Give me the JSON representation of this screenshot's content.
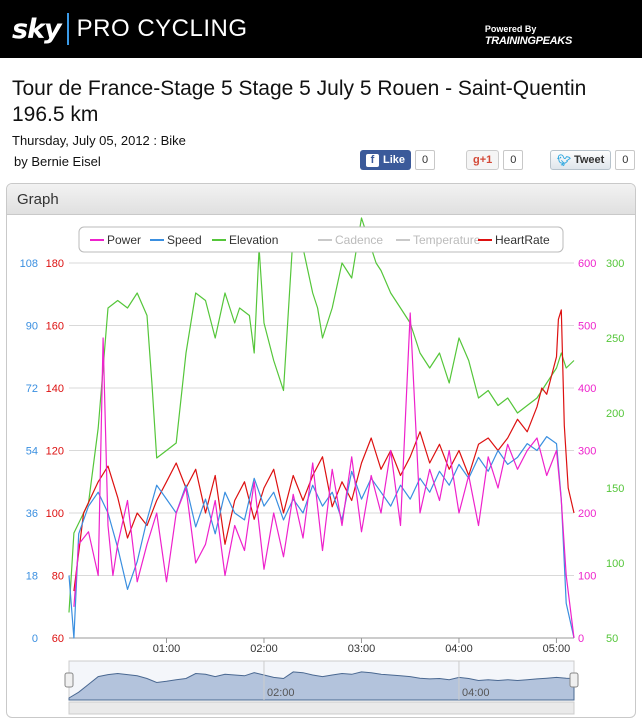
{
  "brand": {
    "sky": "sky",
    "pro": "PRO CYCLING",
    "powered_by": "Powered By",
    "partner": "TRAININGPEAKS"
  },
  "page": {
    "title": "Tour de France-Stage 5 Stage 5 July 5 Rouen - Saint-Quentin 196.5 km",
    "date_line": "Thursday, July 05, 2012 : Bike",
    "author": "by Bernie Eisel"
  },
  "share": {
    "facebook": {
      "label": "Like",
      "count": "0"
    },
    "google": {
      "label": "+1",
      "count": "0"
    },
    "twitter": {
      "label": "Tweet",
      "count": "0"
    }
  },
  "panel": {
    "title": "Graph"
  },
  "colors": {
    "power": "#ee22cc",
    "speed": "#3a8fe0",
    "elevation": "#55c63a",
    "heartrate": "#dd1111",
    "disabled": "#c9c9c9"
  },
  "chart_data": {
    "type": "line",
    "legend": [
      {
        "name": "Power",
        "enabled": true
      },
      {
        "name": "Speed",
        "enabled": true
      },
      {
        "name": "Elevation",
        "enabled": true
      },
      {
        "name": "Cadence",
        "enabled": false
      },
      {
        "name": "Temperature",
        "enabled": false
      },
      {
        "name": "HeartRate",
        "enabled": true
      }
    ],
    "legend_placement": "top",
    "grid": true,
    "x_ticks": [
      "01:00",
      "02:00",
      "03:00",
      "04:00",
      "05:00"
    ],
    "x_range_hours": [
      0,
      5.18
    ],
    "axes": {
      "speed": {
        "ticks": [
          "0",
          "18",
          "36",
          "54",
          "72",
          "90",
          "108"
        ],
        "range": [
          0,
          108
        ]
      },
      "heartrate": {
        "ticks": [
          "60",
          "80",
          "100",
          "120",
          "140",
          "160",
          "180"
        ],
        "range": [
          60,
          180
        ]
      },
      "power": {
        "ticks": [
          "0",
          "100",
          "200",
          "300",
          "400",
          "500",
          "600"
        ],
        "range": [
          0,
          600
        ]
      },
      "elevation": {
        "ticks": [
          "50",
          "100",
          "150",
          "200",
          "250",
          "300"
        ],
        "range": [
          50,
          300
        ]
      }
    },
    "series": [
      {
        "name": "Elevation",
        "axis": "elevation",
        "points": [
          [
            0,
            67
          ],
          [
            0.05,
            120
          ],
          [
            0.2,
            140
          ],
          [
            0.3,
            190
          ],
          [
            0.4,
            270
          ],
          [
            0.5,
            275
          ],
          [
            0.6,
            270
          ],
          [
            0.7,
            280
          ],
          [
            0.8,
            265
          ],
          [
            0.85,
            220
          ],
          [
            0.9,
            170
          ],
          [
            1.0,
            175
          ],
          [
            1.1,
            180
          ],
          [
            1.2,
            240
          ],
          [
            1.3,
            280
          ],
          [
            1.4,
            275
          ],
          [
            1.5,
            250
          ],
          [
            1.6,
            280
          ],
          [
            1.7,
            260
          ],
          [
            1.75,
            270
          ],
          [
            1.85,
            265
          ],
          [
            1.9,
            240
          ],
          [
            1.95,
            310
          ],
          [
            2.0,
            260
          ],
          [
            2.1,
            235
          ],
          [
            2.2,
            215
          ],
          [
            2.3,
            320
          ],
          [
            2.4,
            310
          ],
          [
            2.5,
            280
          ],
          [
            2.55,
            270
          ],
          [
            2.6,
            250
          ],
          [
            2.7,
            270
          ],
          [
            2.8,
            300
          ],
          [
            2.9,
            290
          ],
          [
            3.0,
            330
          ],
          [
            3.1,
            310
          ],
          [
            3.15,
            300
          ],
          [
            3.2,
            295
          ],
          [
            3.3,
            280
          ],
          [
            3.4,
            270
          ],
          [
            3.5,
            260
          ],
          [
            3.6,
            240
          ],
          [
            3.7,
            230
          ],
          [
            3.8,
            240
          ],
          [
            3.9,
            220
          ],
          [
            4.0,
            250
          ],
          [
            4.1,
            235
          ],
          [
            4.2,
            210
          ],
          [
            4.3,
            215
          ],
          [
            4.4,
            205
          ],
          [
            4.5,
            210
          ],
          [
            4.6,
            200
          ],
          [
            4.7,
            205
          ],
          [
            4.8,
            210
          ],
          [
            4.9,
            220
          ],
          [
            5.0,
            230
          ],
          [
            5.05,
            240
          ],
          [
            5.1,
            230
          ],
          [
            5.18,
            235
          ]
        ]
      },
      {
        "name": "HeartRate",
        "axis": "heartrate",
        "points": [
          [
            0.05,
            75
          ],
          [
            0.15,
            100
          ],
          [
            0.3,
            110
          ],
          [
            0.4,
            115
          ],
          [
            0.5,
            105
          ],
          [
            0.6,
            92
          ],
          [
            0.7,
            100
          ],
          [
            0.8,
            96
          ],
          [
            0.9,
            104
          ],
          [
            1.0,
            110
          ],
          [
            1.1,
            116
          ],
          [
            1.2,
            108
          ],
          [
            1.3,
            114
          ],
          [
            1.4,
            100
          ],
          [
            1.5,
            112
          ],
          [
            1.6,
            90
          ],
          [
            1.7,
            104
          ],
          [
            1.8,
            110
          ],
          [
            1.9,
            98
          ],
          [
            2.0,
            108
          ],
          [
            2.1,
            114
          ],
          [
            2.2,
            100
          ],
          [
            2.3,
            112
          ],
          [
            2.4,
            104
          ],
          [
            2.5,
            112
          ],
          [
            2.6,
            118
          ],
          [
            2.7,
            102
          ],
          [
            2.8,
            110
          ],
          [
            2.9,
            104
          ],
          [
            3.0,
            116
          ],
          [
            3.1,
            124
          ],
          [
            3.2,
            114
          ],
          [
            3.3,
            120
          ],
          [
            3.4,
            112
          ],
          [
            3.5,
            118
          ],
          [
            3.6,
            126
          ],
          [
            3.7,
            116
          ],
          [
            3.8,
            122
          ],
          [
            3.9,
            114
          ],
          [
            4.0,
            120
          ],
          [
            4.1,
            112
          ],
          [
            4.2,
            122
          ],
          [
            4.3,
            124
          ],
          [
            4.4,
            120
          ],
          [
            4.5,
            124
          ],
          [
            4.6,
            130
          ],
          [
            4.7,
            126
          ],
          [
            4.8,
            134
          ],
          [
            4.85,
            140
          ],
          [
            4.9,
            138
          ],
          [
            4.95,
            144
          ],
          [
            5.0,
            150
          ],
          [
            5.02,
            162
          ],
          [
            5.05,
            165
          ],
          [
            5.08,
            128
          ],
          [
            5.12,
            108
          ],
          [
            5.18,
            100
          ]
        ]
      },
      {
        "name": "Speed",
        "axis": "speed",
        "points": [
          [
            0,
            18
          ],
          [
            0.05,
            0
          ],
          [
            0.1,
            30
          ],
          [
            0.2,
            38
          ],
          [
            0.3,
            42
          ],
          [
            0.4,
            36
          ],
          [
            0.5,
            26
          ],
          [
            0.6,
            14
          ],
          [
            0.7,
            22
          ],
          [
            0.8,
            34
          ],
          [
            0.9,
            44
          ],
          [
            1.0,
            40
          ],
          [
            1.1,
            36
          ],
          [
            1.2,
            44
          ],
          [
            1.3,
            32
          ],
          [
            1.4,
            40
          ],
          [
            1.5,
            30
          ],
          [
            1.6,
            42
          ],
          [
            1.7,
            36
          ],
          [
            1.8,
            34
          ],
          [
            1.9,
            46
          ],
          [
            2.0,
            38
          ],
          [
            2.1,
            42
          ],
          [
            2.2,
            34
          ],
          [
            2.3,
            40
          ],
          [
            2.4,
            36
          ],
          [
            2.5,
            44
          ],
          [
            2.6,
            38
          ],
          [
            2.7,
            42
          ],
          [
            2.8,
            34
          ],
          [
            2.9,
            48
          ],
          [
            3.0,
            40
          ],
          [
            3.1,
            46
          ],
          [
            3.2,
            42
          ],
          [
            3.3,
            38
          ],
          [
            3.4,
            44
          ],
          [
            3.5,
            40
          ],
          [
            3.6,
            46
          ],
          [
            3.7,
            42
          ],
          [
            3.8,
            48
          ],
          [
            3.9,
            44
          ],
          [
            4.0,
            50
          ],
          [
            4.1,
            46
          ],
          [
            4.2,
            52
          ],
          [
            4.3,
            48
          ],
          [
            4.4,
            54
          ],
          [
            4.5,
            50
          ],
          [
            4.6,
            52
          ],
          [
            4.7,
            56
          ],
          [
            4.8,
            54
          ],
          [
            4.9,
            58
          ],
          [
            5.0,
            56
          ],
          [
            5.05,
            40
          ],
          [
            5.1,
            10
          ],
          [
            5.18,
            0
          ]
        ]
      },
      {
        "name": "Power",
        "axis": "power",
        "points": [
          [
            0.05,
            50
          ],
          [
            0.1,
            150
          ],
          [
            0.2,
            170
          ],
          [
            0.3,
            100
          ],
          [
            0.35,
            480
          ],
          [
            0.4,
            180
          ],
          [
            0.45,
            100
          ],
          [
            0.5,
            150
          ],
          [
            0.6,
            220
          ],
          [
            0.7,
            90
          ],
          [
            0.8,
            150
          ],
          [
            0.9,
            200
          ],
          [
            1.0,
            90
          ],
          [
            1.1,
            200
          ],
          [
            1.2,
            240
          ],
          [
            1.3,
            120
          ],
          [
            1.4,
            150
          ],
          [
            1.5,
            220
          ],
          [
            1.6,
            100
          ],
          [
            1.7,
            180
          ],
          [
            1.8,
            140
          ],
          [
            1.9,
            250
          ],
          [
            2.0,
            110
          ],
          [
            2.1,
            200
          ],
          [
            2.2,
            130
          ],
          [
            2.3,
            230
          ],
          [
            2.4,
            160
          ],
          [
            2.5,
            280
          ],
          [
            2.6,
            140
          ],
          [
            2.7,
            270
          ],
          [
            2.8,
            180
          ],
          [
            2.9,
            290
          ],
          [
            3.0,
            170
          ],
          [
            3.1,
            260
          ],
          [
            3.2,
            200
          ],
          [
            3.3,
            300
          ],
          [
            3.4,
            180
          ],
          [
            3.5,
            520
          ],
          [
            3.6,
            200
          ],
          [
            3.7,
            270
          ],
          [
            3.8,
            220
          ],
          [
            3.9,
            300
          ],
          [
            4.0,
            200
          ],
          [
            4.1,
            260
          ],
          [
            4.2,
            180
          ],
          [
            4.3,
            290
          ],
          [
            4.4,
            240
          ],
          [
            4.5,
            310
          ],
          [
            4.6,
            270
          ],
          [
            4.7,
            300
          ],
          [
            4.8,
            320
          ],
          [
            4.9,
            260
          ],
          [
            5.0,
            300
          ],
          [
            5.05,
            220
          ],
          [
            5.1,
            100
          ],
          [
            5.18,
            0
          ]
        ]
      }
    ],
    "navigator": {
      "x_ticks": [
        "02:00",
        "04:00"
      ],
      "points": [
        [
          0,
          5
        ],
        [
          0.1,
          20
        ],
        [
          0.2,
          40
        ],
        [
          0.3,
          60
        ],
        [
          0.4,
          65
        ],
        [
          0.5,
          68
        ],
        [
          0.6,
          65
        ],
        [
          0.7,
          62
        ],
        [
          0.8,
          55
        ],
        [
          0.9,
          45
        ],
        [
          1.0,
          48
        ],
        [
          1.1,
          52
        ],
        [
          1.2,
          55
        ],
        [
          1.3,
          68
        ],
        [
          1.4,
          66
        ],
        [
          1.5,
          60
        ],
        [
          1.6,
          66
        ],
        [
          1.7,
          64
        ],
        [
          1.8,
          62
        ],
        [
          1.9,
          70
        ],
        [
          2.0,
          64
        ],
        [
          2.1,
          58
        ],
        [
          2.2,
          55
        ],
        [
          2.3,
          72
        ],
        [
          2.4,
          70
        ],
        [
          2.5,
          64
        ],
        [
          2.6,
          60
        ],
        [
          2.7,
          64
        ],
        [
          2.8,
          68
        ],
        [
          2.9,
          66
        ],
        [
          3.0,
          72
        ],
        [
          3.1,
          70
        ],
        [
          3.2,
          66
        ],
        [
          3.3,
          64
        ],
        [
          3.4,
          62
        ],
        [
          3.5,
          60
        ],
        [
          3.6,
          56
        ],
        [
          3.7,
          54
        ],
        [
          3.8,
          55
        ],
        [
          3.9,
          52
        ],
        [
          4.0,
          58
        ],
        [
          4.1,
          55
        ],
        [
          4.2,
          50
        ],
        [
          4.3,
          52
        ],
        [
          4.4,
          50
        ],
        [
          4.5,
          52
        ],
        [
          4.6,
          50
        ],
        [
          4.7,
          52
        ],
        [
          4.8,
          54
        ],
        [
          4.9,
          56
        ],
        [
          5.0,
          58
        ],
        [
          5.1,
          56
        ],
        [
          5.18,
          55
        ]
      ]
    }
  }
}
